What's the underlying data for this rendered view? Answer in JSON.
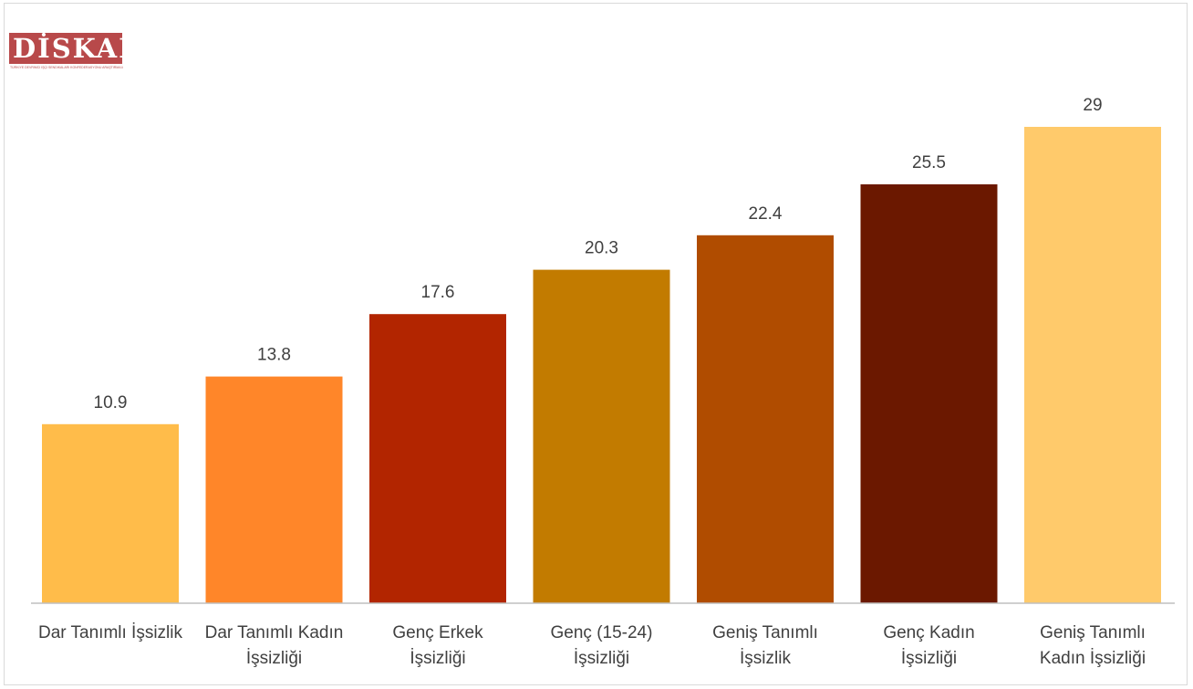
{
  "logo": {
    "text": "DİSKAR",
    "subtitle": "TÜRKİYE DEVRİMCİ İŞÇİ SENDİKALARI KONFEDERASYONU ARAŞTIRMA MERKEZİ"
  },
  "chart_data": {
    "type": "bar",
    "title": "",
    "xlabel": "",
    "ylabel": "",
    "ylim": [
      0,
      32
    ],
    "grid": false,
    "categories": [
      "Dar Tanımlı İşsizlik",
      "Dar Tanımlı Kadın İşsizliği",
      "Genç Erkek İşsizliği",
      "Genç (15-24) İşsizliği",
      "Geniş Tanımlı İşsizlik",
      "Genç Kadın İşsizliği",
      "Geniş Tanımlı Kadın İşsizliği"
    ],
    "category_lines": [
      [
        "Dar Tanımlı İşsizlik"
      ],
      [
        "Dar Tanımlı Kadın",
        "İşsizliği"
      ],
      [
        "Genç Erkek",
        "İşsizliği"
      ],
      [
        "Genç (15-24)",
        "İşsizliği"
      ],
      [
        "Geniş Tanımlı",
        "İşsizlik"
      ],
      [
        "Genç Kadın",
        "İşsizliği"
      ],
      [
        "Geniş Tanımlı",
        "Kadın İşsizliği"
      ]
    ],
    "values": [
      10.9,
      13.8,
      17.6,
      20.3,
      22.4,
      25.5,
      29
    ],
    "value_labels": [
      "10.9",
      "13.8",
      "17.6",
      "20.3",
      "22.4",
      "25.5",
      "29"
    ],
    "colors": [
      "#ffbc4a",
      "#ff8629",
      "#b22500",
      "#c27b00",
      "#b04c00",
      "#6b1800",
      "#ffca6b"
    ]
  }
}
